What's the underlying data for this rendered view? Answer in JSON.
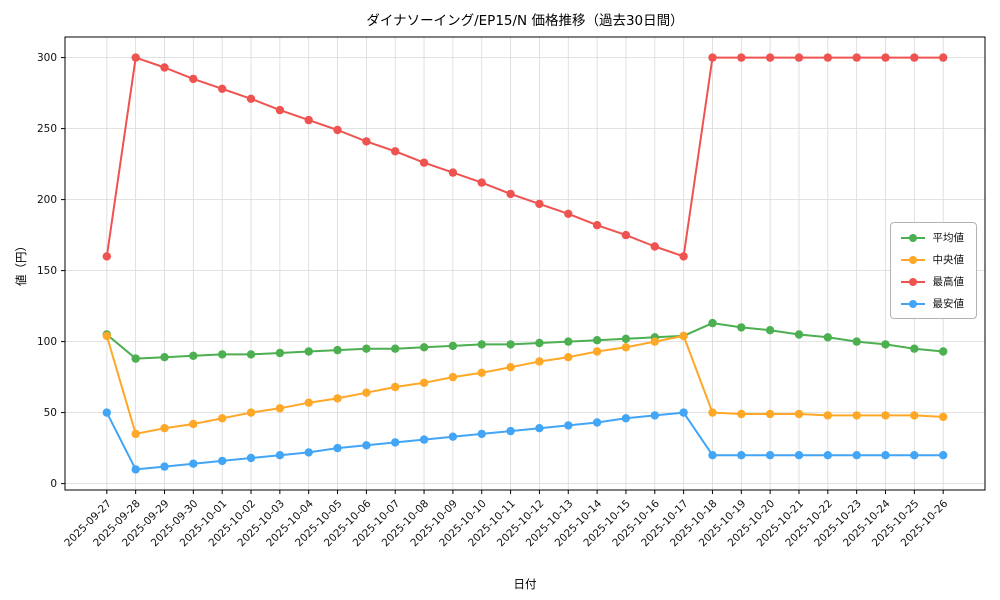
{
  "figure": {
    "background": "#ffffff",
    "grid_color": "#d9d9d9",
    "spine_color": "#000000"
  },
  "chart_data": {
    "type": "line",
    "title": "ダイナソーイング/EP15/N 価格推移（過去30日間）",
    "xlabel": "日付",
    "ylabel": "値（円）",
    "ylim": [
      0,
      300
    ],
    "yticks": [
      0,
      50,
      100,
      150,
      200,
      250,
      300
    ],
    "grid": true,
    "legend_position": "right",
    "x": [
      "2025-09-27",
      "2025-09-28",
      "2025-09-29",
      "2025-09-30",
      "2025-10-01",
      "2025-10-02",
      "2025-10-03",
      "2025-10-04",
      "2025-10-05",
      "2025-10-06",
      "2025-10-07",
      "2025-10-08",
      "2025-10-09",
      "2025-10-10",
      "2025-10-11",
      "2025-10-12",
      "2025-10-13",
      "2025-10-14",
      "2025-10-15",
      "2025-10-16",
      "2025-10-17",
      "2025-10-18",
      "2025-10-19",
      "2025-10-20",
      "2025-10-21",
      "2025-10-22",
      "2025-10-23",
      "2025-10-24",
      "2025-10-25",
      "2025-10-26"
    ],
    "series": [
      {
        "id": "average",
        "name": "平均値",
        "color": "#4caf50",
        "values": [
          105,
          88,
          89,
          90,
          91,
          91,
          92,
          93,
          94,
          95,
          95,
          96,
          97,
          98,
          98,
          99,
          100,
          101,
          102,
          103,
          104,
          113,
          110,
          108,
          105,
          103,
          100,
          98,
          95,
          93
        ]
      },
      {
        "id": "median",
        "name": "中央値",
        "color": "#ffa726",
        "values": [
          104,
          35,
          39,
          42,
          46,
          50,
          53,
          57,
          60,
          64,
          68,
          71,
          75,
          78,
          82,
          86,
          89,
          93,
          96,
          100,
          104,
          50,
          49,
          49,
          49,
          48,
          48,
          48,
          48,
          47
        ]
      },
      {
        "id": "max",
        "name": "最高値",
        "color": "#ef5350",
        "values": [
          160,
          300,
          293,
          285,
          278,
          271,
          263,
          256,
          249,
          241,
          234,
          226,
          219,
          212,
          204,
          197,
          190,
          182,
          175,
          167,
          160,
          300,
          300,
          300,
          300,
          300,
          300,
          300,
          300,
          300
        ]
      },
      {
        "id": "min",
        "name": "最安値",
        "color": "#42a5f5",
        "values": [
          50,
          10,
          12,
          14,
          16,
          18,
          20,
          22,
          25,
          27,
          29,
          31,
          33,
          35,
          37,
          39,
          41,
          43,
          46,
          48,
          50,
          20,
          20,
          20,
          20,
          20,
          20,
          20,
          20,
          20
        ]
      }
    ]
  }
}
